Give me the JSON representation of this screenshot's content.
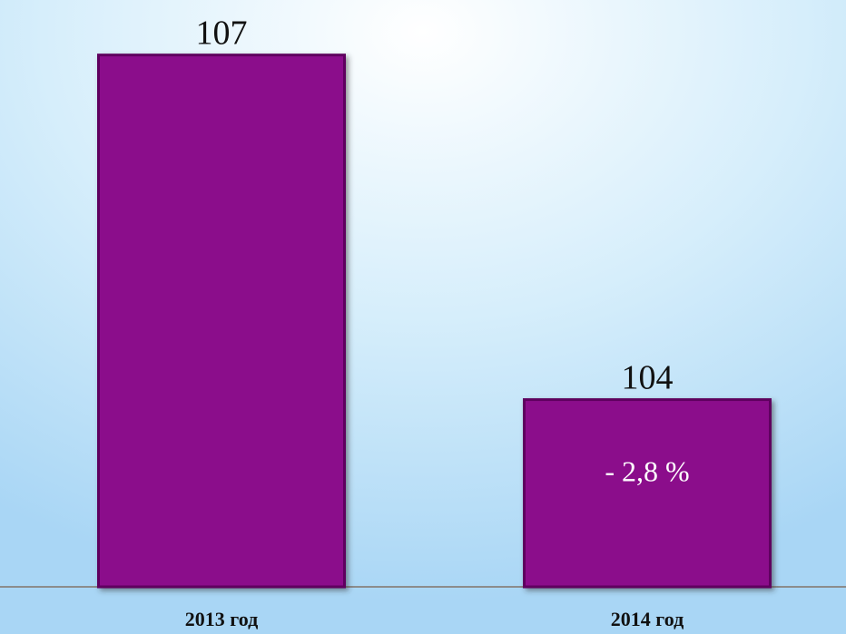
{
  "chart_data": {
    "type": "bar",
    "categories": [
      "2013 год",
      "2014 год"
    ],
    "values": [
      107,
      104
    ],
    "color": "#8b0a8b",
    "ylim": [
      102.37,
      107.4
    ],
    "annotation": "- 2,8 %"
  }
}
